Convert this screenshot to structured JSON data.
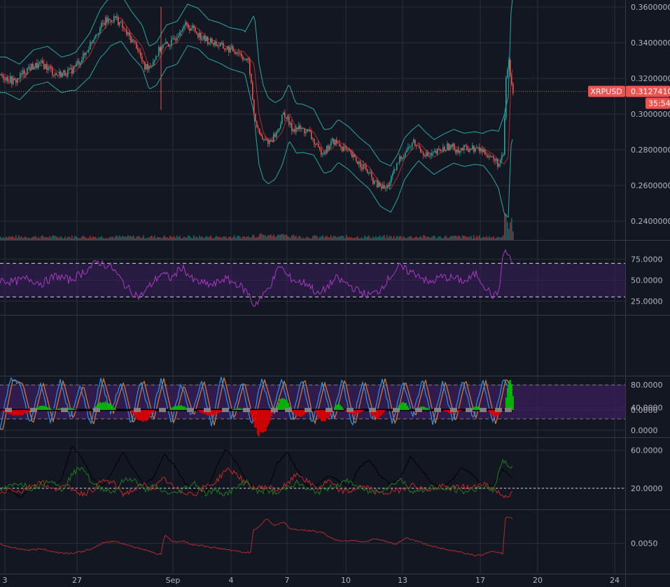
{
  "symbol": "XRPUSD",
  "last_price_label": "0.3127410",
  "countdown": "35:54",
  "colors": {
    "background": "#131722",
    "grid": "#2a2e39",
    "up": "#26a69a",
    "down": "#ef5350",
    "bollinger": "#28a6a8",
    "bollinger_mid": "#b22b34",
    "rsi_line": "#a73ac1",
    "band_fill": "#3a1f5c",
    "stoch_k": "#2196f3",
    "stoch_d": "#e07b32",
    "macd_pos": "#00c000",
    "macd_neg": "#e00000",
    "macd_zero": "#808080",
    "dmi_plus": "#1e7a1e",
    "dmi_minus": "#c62828",
    "adx": "#000000",
    "atr": "#b22b2b",
    "price_line": "#ef5350"
  },
  "x_axis": {
    "labels": [
      "3",
      "27",
      "Sep",
      "4",
      "7",
      "10",
      "13",
      "17",
      "20",
      "24"
    ]
  },
  "chart_data": [
    {
      "type": "candlestick",
      "name": "price",
      "y_ticks": [
        "0.3600000",
        "0.3400000",
        "0.3200000",
        "0.3000000",
        "0.2800000",
        "0.2600000",
        "0.2400000"
      ],
      "ylim": [
        0.233,
        0.362
      ],
      "last_price": 0.312741,
      "overlays": [
        "bollinger bands",
        "volume"
      ],
      "close_path": [
        [
          0,
          0.322
        ],
        [
          20,
          0.318
        ],
        [
          40,
          0.326
        ],
        [
          60,
          0.328
        ],
        [
          80,
          0.322
        ],
        [
          100,
          0.324
        ],
        [
          120,
          0.333
        ],
        [
          135,
          0.345
        ],
        [
          150,
          0.352
        ],
        [
          165,
          0.354
        ],
        [
          180,
          0.345
        ],
        [
          195,
          0.338
        ],
        [
          205,
          0.326
        ],
        [
          215,
          0.328
        ],
        [
          230,
          0.338
        ],
        [
          245,
          0.34
        ],
        [
          260,
          0.35
        ],
        [
          275,
          0.348
        ],
        [
          290,
          0.342
        ],
        [
          305,
          0.34
        ],
        [
          320,
          0.337
        ],
        [
          340,
          0.335
        ],
        [
          355,
          0.328
        ],
        [
          362,
          0.3
        ],
        [
          368,
          0.29
        ],
        [
          375,
          0.285
        ],
        [
          385,
          0.285
        ],
        [
          395,
          0.29
        ],
        [
          405,
          0.301
        ],
        [
          415,
          0.292
        ],
        [
          425,
          0.292
        ],
        [
          440,
          0.29
        ],
        [
          455,
          0.279
        ],
        [
          465,
          0.28
        ],
        [
          475,
          0.285
        ],
        [
          490,
          0.281
        ],
        [
          505,
          0.275
        ],
        [
          520,
          0.27
        ],
        [
          535,
          0.261
        ],
        [
          550,
          0.258
        ],
        [
          560,
          0.265
        ],
        [
          570,
          0.275
        ],
        [
          580,
          0.28
        ],
        [
          590,
          0.284
        ],
        [
          600,
          0.28
        ],
        [
          612,
          0.276
        ],
        [
          625,
          0.279
        ],
        [
          640,
          0.282
        ],
        [
          655,
          0.28
        ],
        [
          670,
          0.281
        ],
        [
          685,
          0.28
        ],
        [
          695,
          0.278
        ],
        [
          705,
          0.274
        ],
        [
          712,
          0.272
        ],
        [
          718,
          0.276
        ],
        [
          722,
          0.32
        ],
        [
          726,
          0.33
        ],
        [
          730,
          0.315
        ],
        [
          733,
          0.3127
        ]
      ],
      "band_halfwidth_path": [
        [
          0,
          0.01
        ],
        [
          100,
          0.01
        ],
        [
          150,
          0.014
        ],
        [
          200,
          0.012
        ],
        [
          250,
          0.012
        ],
        [
          300,
          0.011
        ],
        [
          350,
          0.012
        ],
        [
          365,
          0.03
        ],
        [
          380,
          0.025
        ],
        [
          420,
          0.014
        ],
        [
          470,
          0.012
        ],
        [
          520,
          0.012
        ],
        [
          560,
          0.013
        ],
        [
          600,
          0.01
        ],
        [
          690,
          0.009
        ],
        [
          712,
          0.016
        ],
        [
          722,
          0.03
        ],
        [
          733,
          0.04
        ]
      ]
    },
    {
      "type": "line",
      "name": "rsi",
      "y_ticks": [
        "75.0000",
        "50.0000",
        "25.0000"
      ],
      "ylim": [
        12,
        92
      ],
      "bands": [
        30,
        70
      ],
      "path": [
        [
          0,
          50
        ],
        [
          20,
          48
        ],
        [
          40,
          52
        ],
        [
          60,
          46
        ],
        [
          80,
          55
        ],
        [
          100,
          50
        ],
        [
          120,
          60
        ],
        [
          140,
          72
        ],
        [
          160,
          65
        ],
        [
          175,
          48
        ],
        [
          185,
          38
        ],
        [
          200,
          30
        ],
        [
          215,
          44
        ],
        [
          230,
          58
        ],
        [
          245,
          52
        ],
        [
          260,
          66
        ],
        [
          275,
          50
        ],
        [
          290,
          46
        ],
        [
          305,
          44
        ],
        [
          320,
          52
        ],
        [
          340,
          45
        ],
        [
          355,
          34
        ],
        [
          362,
          20
        ],
        [
          375,
          30
        ],
        [
          390,
          50
        ],
        [
          400,
          68
        ],
        [
          410,
          55
        ],
        [
          425,
          48
        ],
        [
          440,
          46
        ],
        [
          455,
          32
        ],
        [
          465,
          40
        ],
        [
          480,
          52
        ],
        [
          495,
          46
        ],
        [
          510,
          38
        ],
        [
          525,
          32
        ],
        [
          540,
          36
        ],
        [
          555,
          52
        ],
        [
          570,
          66
        ],
        [
          585,
          60
        ],
        [
          600,
          56
        ],
        [
          612,
          46
        ],
        [
          630,
          54
        ],
        [
          650,
          52
        ],
        [
          665,
          48
        ],
        [
          680,
          58
        ],
        [
          695,
          40
        ],
        [
          705,
          30
        ],
        [
          712,
          36
        ],
        [
          720,
          86
        ],
        [
          726,
          80
        ],
        [
          733,
          68
        ]
      ]
    },
    {
      "type": "line",
      "name": "stochastic",
      "y_ticks": [
        "80.0000",
        "40.0000",
        "0.0000"
      ],
      "ylim": [
        0,
        100
      ],
      "bands": [
        20,
        80
      ],
      "k_anchors": [
        0,
        90,
        82,
        10,
        85,
        15,
        88,
        20,
        80,
        8,
        92,
        30,
        85,
        10,
        90,
        18,
        92,
        12,
        80,
        25,
        88,
        8,
        94,
        20,
        86,
        12,
        90,
        30,
        88,
        15,
        92,
        10,
        84,
        20,
        90,
        8,
        86,
        18,
        92,
        10,
        88,
        24,
        90,
        12,
        86,
        15,
        90,
        20,
        88,
        10,
        92,
        60
      ],
      "d_offset": 4
    },
    {
      "type": "histogram",
      "name": "macd_histogram",
      "y_ticks": [
        "0.0000"
      ],
      "zero_ref": 0,
      "segments": [
        [
          0,
          45,
          -0.35
        ],
        [
          45,
          75,
          0.25
        ],
        [
          75,
          110,
          0.15
        ],
        [
          130,
          165,
          0.55
        ],
        [
          185,
          220,
          -0.75
        ],
        [
          240,
          270,
          0.3
        ],
        [
          280,
          320,
          -0.35
        ],
        [
          330,
          350,
          0.12
        ],
        [
          355,
          390,
          -1.6
        ],
        [
          393,
          415,
          0.85
        ],
        [
          415,
          440,
          -0.45
        ],
        [
          448,
          475,
          -0.7
        ],
        [
          475,
          490,
          0.45
        ],
        [
          490,
          520,
          -0.3
        ],
        [
          525,
          550,
          -0.55
        ],
        [
          565,
          585,
          0.5
        ],
        [
          590,
          615,
          0.2
        ],
        [
          630,
          660,
          -0.2
        ],
        [
          670,
          690,
          0.22
        ],
        [
          695,
          718,
          -0.4
        ],
        [
          720,
          734,
          1.9
        ]
      ],
      "zero_marker_xs": [
        12,
        48,
        92,
        138,
        196,
        232,
        272,
        296,
        322,
        352,
        392,
        412,
        440,
        470,
        500,
        532,
        566,
        598,
        625,
        648,
        670,
        690,
        712,
        726
      ]
    },
    {
      "type": "line",
      "name": "dmi_adx",
      "y_ticks": [
        "60.0000",
        "20.0000"
      ],
      "ylim": [
        0,
        70
      ],
      "reference": 20,
      "plus_anchors": [
        18,
        22,
        26,
        20,
        24,
        30,
        18,
        34,
        44,
        24,
        20,
        16,
        28,
        30,
        18,
        22,
        16,
        14,
        20,
        26,
        14,
        18,
        14,
        20,
        28,
        16,
        18,
        14,
        22,
        26,
        18,
        16,
        20,
        24,
        28,
        20,
        16,
        18,
        22,
        30,
        18,
        16,
        22,
        18,
        20,
        16,
        18,
        22,
        18,
        48,
        42
      ],
      "minus_anchors": [
        14,
        20,
        16,
        22,
        28,
        18,
        22,
        20,
        14,
        18,
        28,
        26,
        14,
        18,
        24,
        20,
        30,
        20,
        16,
        14,
        22,
        26,
        40,
        36,
        24,
        20,
        22,
        18,
        24,
        36,
        26,
        20,
        28,
        18,
        16,
        22,
        20,
        14,
        16,
        18,
        24,
        20,
        18,
        22,
        20,
        22,
        20,
        26,
        20,
        12,
        14
      ],
      "adx_anchors": [
        14,
        18,
        10,
        22,
        28,
        18,
        30,
        64,
        52,
        30,
        22,
        38,
        58,
        40,
        24,
        32,
        56,
        44,
        26,
        18,
        14,
        40,
        62,
        48,
        28,
        20,
        16,
        46,
        58,
        38,
        22,
        24,
        34,
        28,
        20,
        42,
        50,
        34,
        24,
        30,
        54,
        40,
        26,
        20,
        28,
        42,
        34,
        24,
        22,
        40,
        30
      ]
    },
    {
      "type": "line",
      "name": "atr",
      "y_ticks": [
        "0.0050"
      ],
      "ylim": [
        0.0026,
        0.0076
      ],
      "path": [
        [
          0,
          0.0049
        ],
        [
          20,
          0.0046
        ],
        [
          40,
          0.0044
        ],
        [
          60,
          0.0045
        ],
        [
          80,
          0.0042
        ],
        [
          100,
          0.0041
        ],
        [
          120,
          0.0043
        ],
        [
          135,
          0.0046
        ],
        [
          150,
          0.0051
        ],
        [
          165,
          0.0052
        ],
        [
          180,
          0.0049
        ],
        [
          195,
          0.0046
        ],
        [
          210,
          0.0044
        ],
        [
          222,
          0.0041
        ],
        [
          230,
          0.004
        ],
        [
          235,
          0.0058
        ],
        [
          248,
          0.0051
        ],
        [
          262,
          0.0052
        ],
        [
          275,
          0.0049
        ],
        [
          290,
          0.0048
        ],
        [
          305,
          0.0046
        ],
        [
          320,
          0.0045
        ],
        [
          335,
          0.0043
        ],
        [
          350,
          0.0042
        ],
        [
          358,
          0.0042
        ],
        [
          362,
          0.0062
        ],
        [
          370,
          0.0065
        ],
        [
          380,
          0.0072
        ],
        [
          392,
          0.0066
        ],
        [
          405,
          0.0069
        ],
        [
          415,
          0.0063
        ],
        [
          430,
          0.0062
        ],
        [
          445,
          0.0061
        ],
        [
          460,
          0.006
        ],
        [
          475,
          0.0054
        ],
        [
          490,
          0.0052
        ],
        [
          505,
          0.0053
        ],
        [
          520,
          0.0051
        ],
        [
          535,
          0.0054
        ],
        [
          550,
          0.0052
        ],
        [
          565,
          0.0049
        ],
        [
          580,
          0.0055
        ],
        [
          595,
          0.0052
        ],
        [
          610,
          0.0049
        ],
        [
          625,
          0.0046
        ],
        [
          640,
          0.0044
        ],
        [
          655,
          0.0043
        ],
        [
          670,
          0.004
        ],
        [
          685,
          0.0039
        ],
        [
          700,
          0.0043
        ],
        [
          712,
          0.0042
        ],
        [
          718,
          0.0041
        ],
        [
          722,
          0.0072
        ],
        [
          726,
          0.0074
        ],
        [
          733,
          0.0071
        ]
      ]
    }
  ]
}
